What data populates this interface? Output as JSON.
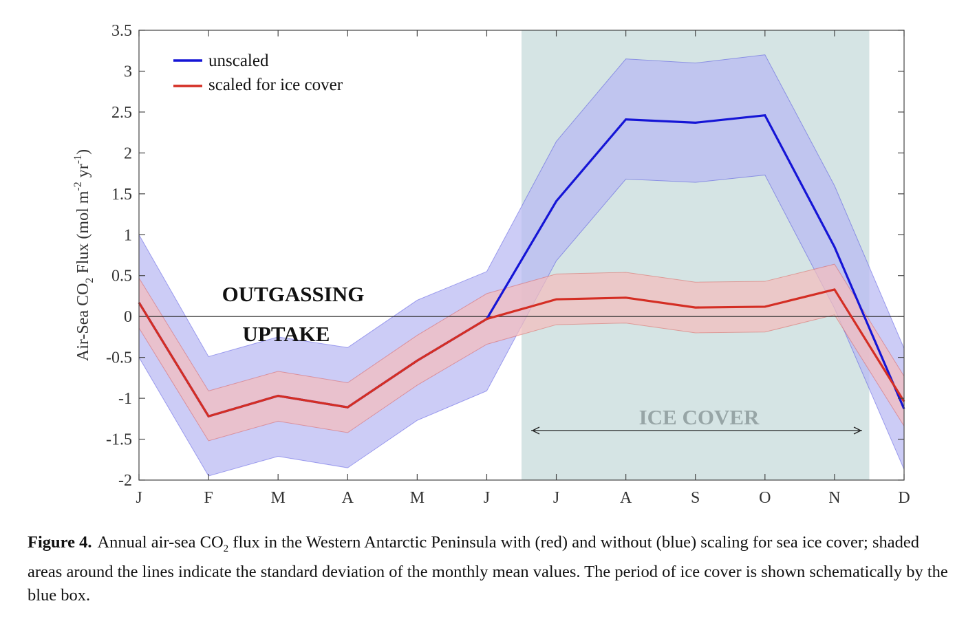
{
  "chart_data": {
    "type": "line",
    "xlabel": "",
    "ylabel_main": "Air-Sea CO",
    "ylabel_sub": "2",
    "ylabel_rest": " Flux (mol m",
    "ylabel_sup1": "-2",
    "ylabel_mid": " yr",
    "ylabel_sup2": "-1",
    "ylabel_end": ")",
    "categories": [
      "J",
      "F",
      "M",
      "A",
      "M",
      "J",
      "J",
      "A",
      "S",
      "O",
      "N",
      "D"
    ],
    "ylim": [
      -2,
      3.5
    ],
    "yticks": [
      -2,
      -1.5,
      -1,
      -0.5,
      0,
      0.5,
      1,
      1.5,
      2,
      2.5,
      3,
      3.5
    ],
    "ytick_labels": [
      "-2",
      "-1.5",
      "-1",
      "-0.5",
      "0",
      "0.5",
      "1",
      "1.5",
      "2",
      "2.5",
      "3",
      "3.5"
    ],
    "grid": false,
    "legend_position": "top-left",
    "series": [
      {
        "name": "unscaled",
        "color": "#1515d6",
        "band_color": "#b9b9f3",
        "values": [
          0.17,
          -1.22,
          -0.97,
          -1.11,
          -0.54,
          -0.03,
          1.41,
          2.41,
          2.37,
          2.46,
          0.85,
          -1.13
        ],
        "upper": [
          1.0,
          -0.49,
          -0.25,
          -0.38,
          0.2,
          0.55,
          2.14,
          3.15,
          3.1,
          3.2,
          1.6,
          -0.39
        ],
        "lower": [
          -0.5,
          -1.95,
          -1.71,
          -1.85,
          -1.27,
          -0.91,
          0.68,
          1.68,
          1.64,
          1.73,
          0.1,
          -1.87
        ]
      },
      {
        "name": "scaled for ice cover",
        "color": "#d42e24",
        "band_color": "#f4bdbd",
        "values": [
          0.17,
          -1.22,
          -0.97,
          -1.11,
          -0.54,
          -0.03,
          0.21,
          0.23,
          0.11,
          0.12,
          0.33,
          -1.04
        ],
        "upper": [
          0.47,
          -0.91,
          -0.67,
          -0.81,
          -0.23,
          0.28,
          0.52,
          0.54,
          0.42,
          0.43,
          0.64,
          -0.73
        ],
        "lower": [
          -0.14,
          -1.52,
          -1.28,
          -1.42,
          -0.84,
          -0.34,
          -0.1,
          -0.08,
          -0.2,
          -0.19,
          0.02,
          -1.34
        ]
      }
    ],
    "annotations": {
      "outgassing": "OUTGASSING",
      "uptake": "UPTAKE",
      "ice_cover": "ICE COVER"
    },
    "ice_cover_span_months": [
      5.5,
      10.5
    ],
    "ice_cover_color": "#d5e4e4"
  },
  "caption": {
    "label": "Figure 4.",
    "text_before": "Annual air-sea CO",
    "subscript": "2",
    "text_after": " flux in the Western Antarctic Peninsula with (red) and without (blue) scaling for sea ice cover; shaded areas around the lines indicate the standard deviation of the monthly mean values. The period of ice cover is shown schematically by the blue box."
  }
}
